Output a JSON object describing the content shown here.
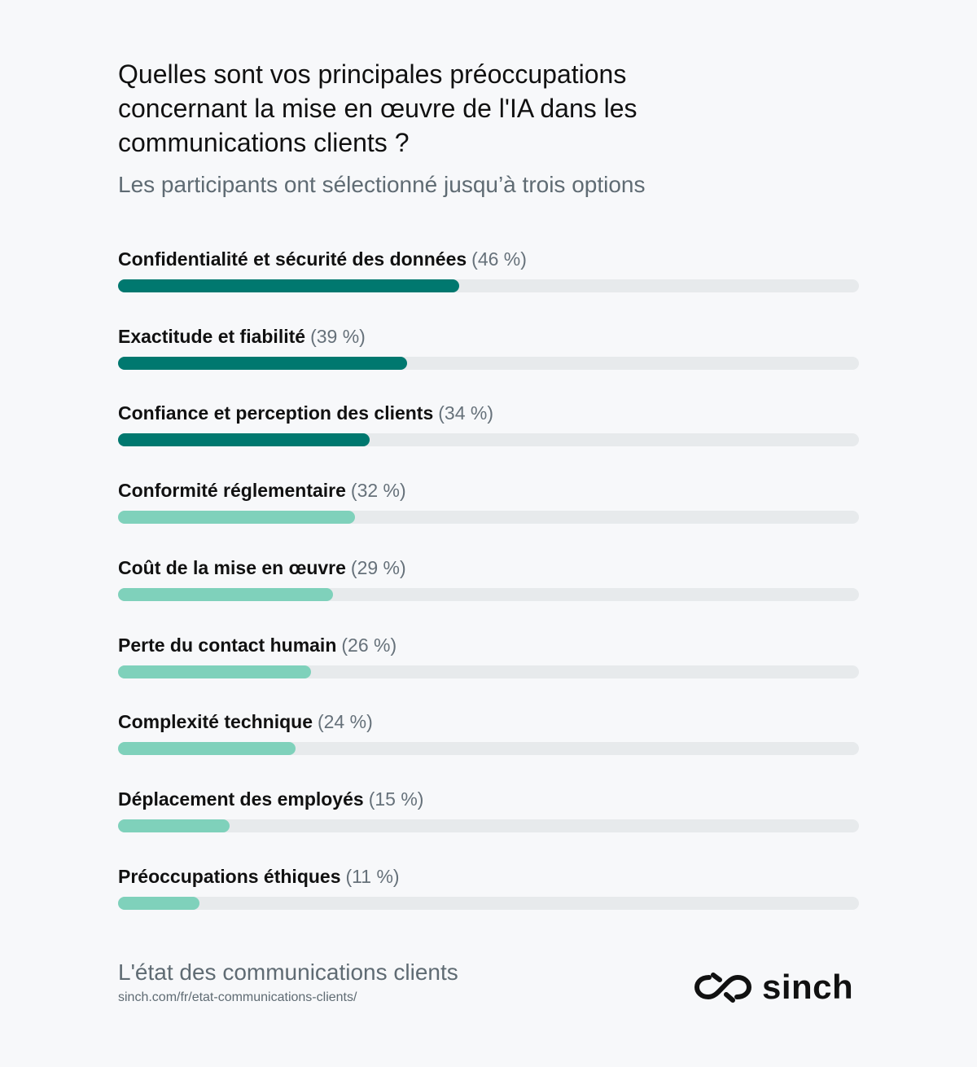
{
  "colors": {
    "background": "#f7f8fa",
    "dark_teal": "#00786f",
    "light_teal": "#7fd1bb",
    "track": "#e7eaec",
    "muted_text": "#5f6b73"
  },
  "chart_data": {
    "type": "bar",
    "orientation": "horizontal",
    "title": "Quelles sont vos principales préoccupations concernant la mise en œuvre de l'IA dans les communications clients ?",
    "subtitle": "Les participants ont sélectionné jusqu’à trois options",
    "xlim": [
      0,
      100
    ],
    "grid": false,
    "legend": "none",
    "categories": [
      "Confidentialité et sécurité des données",
      "Exactitude et fiabilité",
      "Confiance et perception des clients",
      "Conformité réglementaire",
      "Coût de la mise en œuvre",
      "Perte du contact humain",
      "Complexité technique",
      "Déplacement des employés",
      "Préoccupations éthiques"
    ],
    "values": [
      46,
      39,
      34,
      32,
      29,
      26,
      24,
      15,
      11
    ],
    "value_labels": [
      "(46 %)",
      "(39 %)",
      "(34 %)",
      "(32 %)",
      "(29 %)",
      "(26 %)",
      "(24 %)",
      "(15 %)",
      "(11 %)"
    ],
    "bar_colors": [
      "#00786f",
      "#00786f",
      "#00786f",
      "#7fd1bb",
      "#7fd1bb",
      "#7fd1bb",
      "#7fd1bb",
      "#7fd1bb",
      "#7fd1bb"
    ]
  },
  "footer": {
    "title": "L'état des communications clients",
    "url": "sinch.com/fr/etat-communications-clients/"
  },
  "logo": {
    "icon": "sinch-infinity-icon",
    "text": "sinch"
  }
}
